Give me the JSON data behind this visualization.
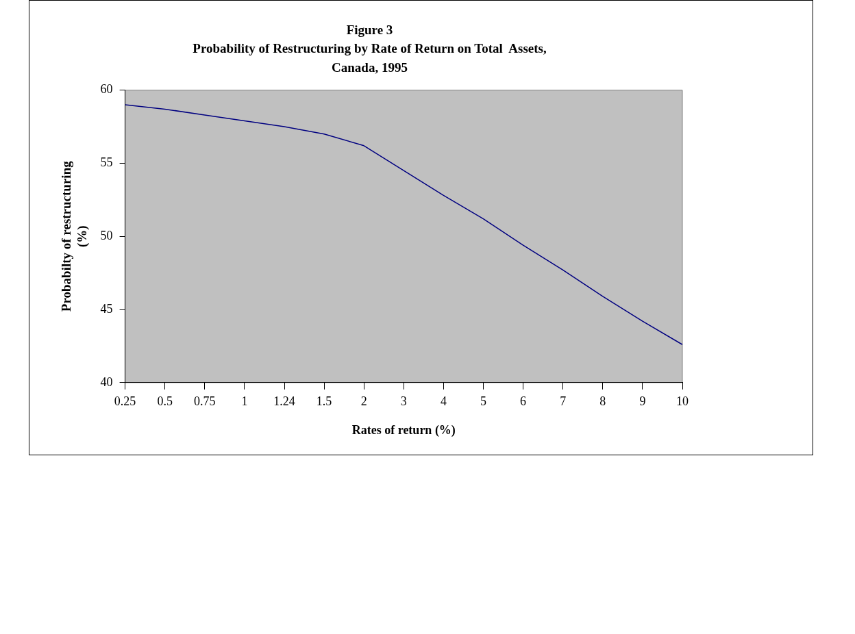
{
  "chart_data": {
    "type": "line",
    "title": "Figure 3\nProbability of Restructuring by Rate of Return on Total  Assets,\nCanada, 1995",
    "xlabel": "Rates of return (%)",
    "ylabel": "Probabilty of restructuring\n(%)",
    "categories": [
      "0.25",
      "0.5",
      "0.75",
      "1",
      "1.24",
      "1.5",
      "2",
      "3",
      "4",
      "5",
      "6",
      "7",
      "8",
      "9",
      "10"
    ],
    "series": [
      {
        "color": "#000080",
        "values": [
          59.0,
          58.7,
          58.3,
          57.9,
          57.5,
          57.0,
          56.2,
          54.5,
          52.8,
          51.2,
          49.4,
          47.7,
          45.9,
          44.2,
          42.6
        ]
      }
    ],
    "ylim": [
      40,
      60
    ],
    "yticks": [
      40,
      45,
      50,
      55,
      60
    ],
    "grid": false,
    "legend": false,
    "marker": "none",
    "line_style": "solid"
  }
}
